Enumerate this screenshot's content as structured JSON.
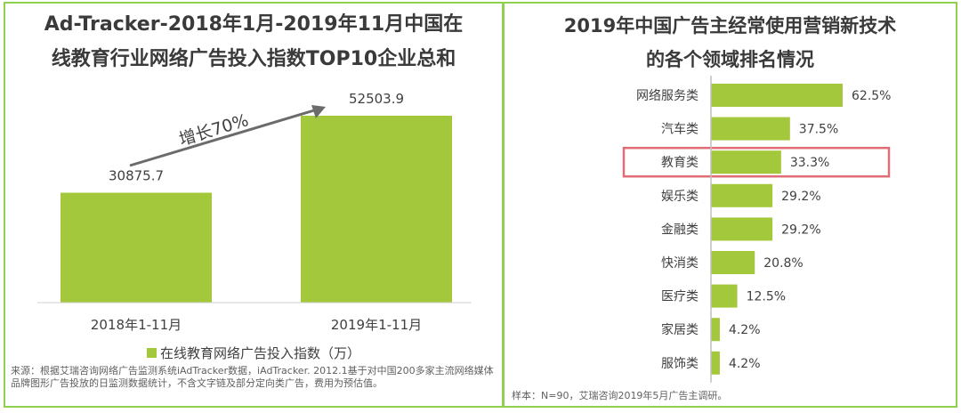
{
  "left": {
    "title": "Ad-Tracker-2018年1月-2019年11月中国在线教育行业网络广告投入指数TOP10企业总和",
    "growth_label": "增长70%",
    "legend": "在线教育网络广告投入指数（万）",
    "source": "来源：根据艾瑞咨询网络广告监测系统iAdTracker数据，iAdTracker. 2012.1基于对中国200多家主流网络媒体品牌图形广告投放的日监测数据统计，不含文字链及部分定向类广告，费用为预估值。"
  },
  "right": {
    "title": "2019年中国广告主经常使用营销新技术的各个领域排名情况",
    "sample": "样本：N=90，艾瑞咨询2019年5月广告主调研。",
    "highlight_category": "教育类",
    "highlight_color": "#e06c75"
  },
  "colors": {
    "bar": "#a4c83c",
    "border": "#8fd14f",
    "arrow": "#6b6b6b"
  },
  "chart_data": [
    {
      "type": "bar",
      "title": "Ad-Tracker-2018年1月-2019年11月中国在线教育行业网络广告投入指数TOP10企业总和",
      "categories": [
        "2018年1-11月",
        "2019年1-11月"
      ],
      "series": [
        {
          "name": "在线教育网络广告投入指数（万）",
          "values": [
            30875.7,
            52503.9
          ]
        }
      ],
      "data_labels": [
        "30875.7",
        "52503.9"
      ],
      "annotation": "增长70%",
      "ylim": [
        0,
        60000
      ],
      "grid": false,
      "legend": "bottom"
    },
    {
      "type": "bar",
      "orientation": "horizontal",
      "title": "2019年中国广告主经常使用营销新技术的各个领域排名情况",
      "categories": [
        "网络服务类",
        "汽车类",
        "教育类",
        "娱乐类",
        "金融类",
        "快消类",
        "医疗类",
        "家居类",
        "服饰类"
      ],
      "values": [
        62.5,
        37.5,
        33.3,
        29.2,
        29.2,
        20.8,
        12.5,
        4.2,
        4.2
      ],
      "data_labels": [
        "62.5%",
        "37.5%",
        "33.3%",
        "29.2%",
        "29.2%",
        "20.8%",
        "12.5%",
        "4.2%",
        "4.2%"
      ],
      "xlim": [
        0,
        62.5
      ],
      "grid": false,
      "legend": "none"
    }
  ]
}
